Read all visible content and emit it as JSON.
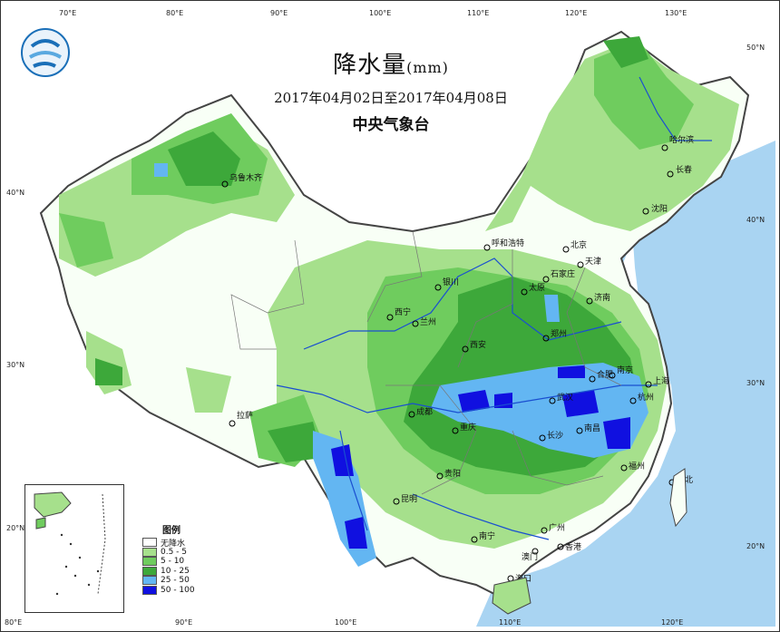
{
  "map": {
    "title_main": "降水量",
    "title_unit": "(mm)",
    "date_range": "2017年04月02日至2017年04月08日",
    "organization": "中央气象台"
  },
  "legend": {
    "title": "图例",
    "items": [
      {
        "label": "无降水",
        "color": "#ffffff"
      },
      {
        "label": "0.5 - 5",
        "color": "#a6e08c"
      },
      {
        "label": "5 - 10",
        "color": "#6fcc5e"
      },
      {
        "label": "10 - 25",
        "color": "#3da83a"
      },
      {
        "label": "25 - 50",
        "color": "#63b6f2"
      },
      {
        "label": "50 - 100",
        "color": "#1010e0"
      }
    ]
  },
  "cities": [
    {
      "name": "乌鲁木齐"
    },
    {
      "name": "哈尔滨"
    },
    {
      "name": "长春"
    },
    {
      "name": "沈阳"
    },
    {
      "name": "呼和浩特"
    },
    {
      "name": "北京"
    },
    {
      "name": "天津"
    },
    {
      "name": "石家庄"
    },
    {
      "name": "太原"
    },
    {
      "name": "济南"
    },
    {
      "name": "银川"
    },
    {
      "name": "西宁"
    },
    {
      "name": "兰州"
    },
    {
      "name": "郑州"
    },
    {
      "name": "西安"
    },
    {
      "name": "合肥"
    },
    {
      "name": "南京"
    },
    {
      "name": "上海"
    },
    {
      "name": "杭州"
    },
    {
      "name": "武汉"
    },
    {
      "name": "拉萨"
    },
    {
      "name": "成都"
    },
    {
      "name": "重庆"
    },
    {
      "name": "长沙"
    },
    {
      "name": "南昌"
    },
    {
      "name": "福州"
    },
    {
      "name": "台北"
    },
    {
      "name": "贵阳"
    },
    {
      "name": "昆明"
    },
    {
      "name": "南宁"
    },
    {
      "name": "广州"
    },
    {
      "name": "澳门"
    },
    {
      "name": "香港"
    },
    {
      "name": "海口"
    }
  ],
  "graticule": {
    "top_lon": [
      "70°E",
      "80°E",
      "90°E",
      "100°E",
      "110°E",
      "120°E",
      "130°E"
    ],
    "bottom_lon": [
      "80°E",
      "90°E",
      "100°E",
      "110°E",
      "120°E"
    ],
    "left_lat": [
      "40°N",
      "30°N",
      "20°N"
    ],
    "right_lat": [
      "50°N",
      "40°N",
      "30°N",
      "20°N"
    ]
  },
  "colors": {
    "sea": "#a9d4f2",
    "land_no_rain": "#ffffff",
    "border": "#444444",
    "river": "#1a4fd0"
  }
}
